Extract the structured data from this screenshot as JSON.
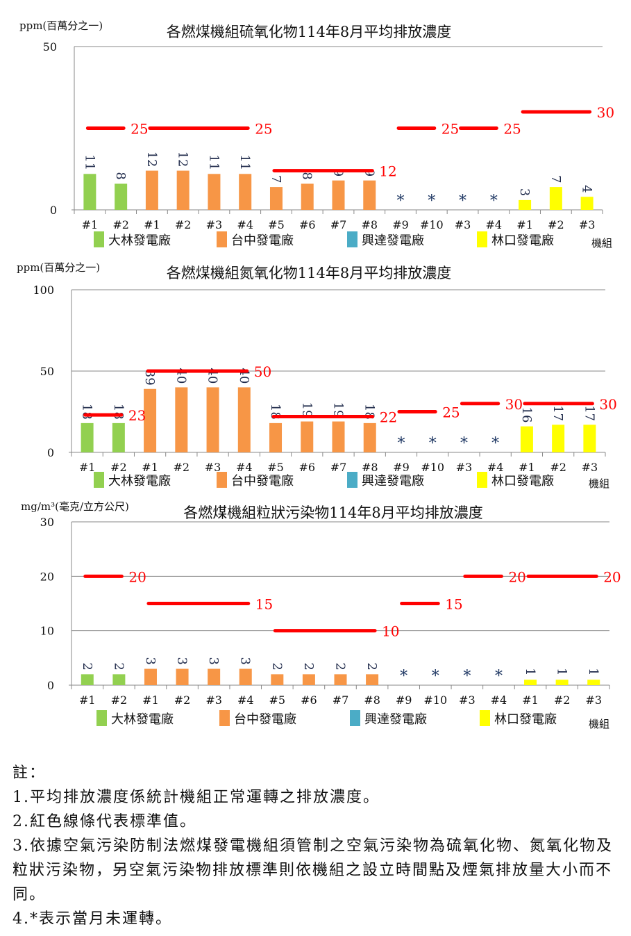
{
  "categories": [
    "#1",
    "#2",
    "#1",
    "#2",
    "#3",
    "#4",
    "#5",
    "#6",
    "#7",
    "#8",
    "#9",
    "#10",
    "#3",
    "#4",
    "#1",
    "#2",
    "#3"
  ],
  "category_groups": [
    0,
    0,
    1,
    1,
    1,
    1,
    1,
    1,
    1,
    1,
    2,
    2,
    2,
    2,
    3,
    3,
    3
  ],
  "legend": [
    {
      "label": "大林發電廠",
      "color": "#92d050"
    },
    {
      "label": "台中發電廠",
      "color": "#f79646"
    },
    {
      "label": "興達發電廠",
      "color": "#4bacc6"
    },
    {
      "label": "林口發電廠",
      "color": "#ffff00"
    }
  ],
  "not_running_marker": "*",
  "limit_color": "#ff0000",
  "chart_data": [
    {
      "type": "bar",
      "title": "各燃煤機組硫氧化物114年8月平均排放濃度",
      "ylabel": "ppm(百萬分之一)",
      "xlabel": "機組",
      "ylim": [
        0,
        50
      ],
      "yticks": [
        0,
        50
      ],
      "gridlines": [
        50
      ],
      "values": [
        11,
        8,
        12,
        12,
        11,
        11,
        7,
        8,
        9,
        9,
        null,
        null,
        null,
        null,
        3,
        7,
        4
      ],
      "limits": [
        {
          "from": 0,
          "to": 1,
          "value": 25,
          "label": "25"
        },
        {
          "from": 2,
          "to": 5,
          "value": 25,
          "label": "25"
        },
        {
          "from": 6,
          "to": 9,
          "value": 12,
          "label": "12"
        },
        {
          "from": 10,
          "to": 11,
          "value": 25,
          "label": "25"
        },
        {
          "from": 12,
          "to": 13,
          "value": 25,
          "label": "25"
        },
        {
          "from": 14,
          "to": 16,
          "value": 30,
          "label": "30"
        }
      ]
    },
    {
      "type": "bar",
      "title": "各燃煤機組氮氧化物114年8月平均排放濃度",
      "ylabel": "ppm(百萬分之一)",
      "xlabel": "機組",
      "ylim": [
        0,
        100
      ],
      "yticks": [
        0,
        50,
        100
      ],
      "gridlines": [
        50,
        100
      ],
      "values": [
        18,
        18,
        39,
        40,
        40,
        40,
        18,
        19,
        19,
        18,
        null,
        null,
        null,
        null,
        16,
        17,
        17
      ],
      "limits": [
        {
          "from": 0,
          "to": 1,
          "value": 23,
          "label": "23"
        },
        {
          "from": 2,
          "to": 5,
          "value": 50,
          "label": "50"
        },
        {
          "from": 6,
          "to": 9,
          "value": 22,
          "label": "22"
        },
        {
          "from": 10,
          "to": 11,
          "value": 25,
          "label": "25"
        },
        {
          "from": 12,
          "to": 13,
          "value": 30,
          "label": "30"
        },
        {
          "from": 14,
          "to": 16,
          "value": 30,
          "label": "30"
        }
      ]
    },
    {
      "type": "bar",
      "title": "各燃煤機組粒狀污染物114年8月平均排放濃度",
      "ylabel": "mg/m³(毫克/立方公尺)",
      "xlabel": "機組",
      "ylim": [
        0,
        30
      ],
      "yticks": [
        0,
        10,
        20,
        30
      ],
      "gridlines": [
        10,
        20,
        30
      ],
      "values": [
        2,
        2,
        3,
        3,
        3,
        3,
        2,
        2,
        2,
        2,
        null,
        null,
        null,
        null,
        1,
        1,
        1
      ],
      "limits": [
        {
          "from": 0,
          "to": 1,
          "value": 20,
          "label": "20"
        },
        {
          "from": 2,
          "to": 5,
          "value": 15,
          "label": "15"
        },
        {
          "from": 6,
          "to": 9,
          "value": 10,
          "label": "10"
        },
        {
          "from": 10,
          "to": 11,
          "value": 15,
          "label": "15"
        },
        {
          "from": 12,
          "to": 13,
          "value": 20,
          "label": "20"
        },
        {
          "from": 14,
          "to": 16,
          "value": 20,
          "label": "20"
        }
      ]
    }
  ],
  "notes": {
    "heading": "註：",
    "items": [
      "1.平均排放濃度係統計機組正常運轉之排放濃度。",
      "2.紅色線條代表標準值。",
      "3.依據空氣污染防制法燃煤發電機組須管制之空氣污染物為硫氧化物、氮氧化物及粒狀污染物，另空氣污染物排放標準則依機組之設立時間點及煙氣排放量大小而不同。",
      "4.*表示當月未運轉。"
    ]
  }
}
